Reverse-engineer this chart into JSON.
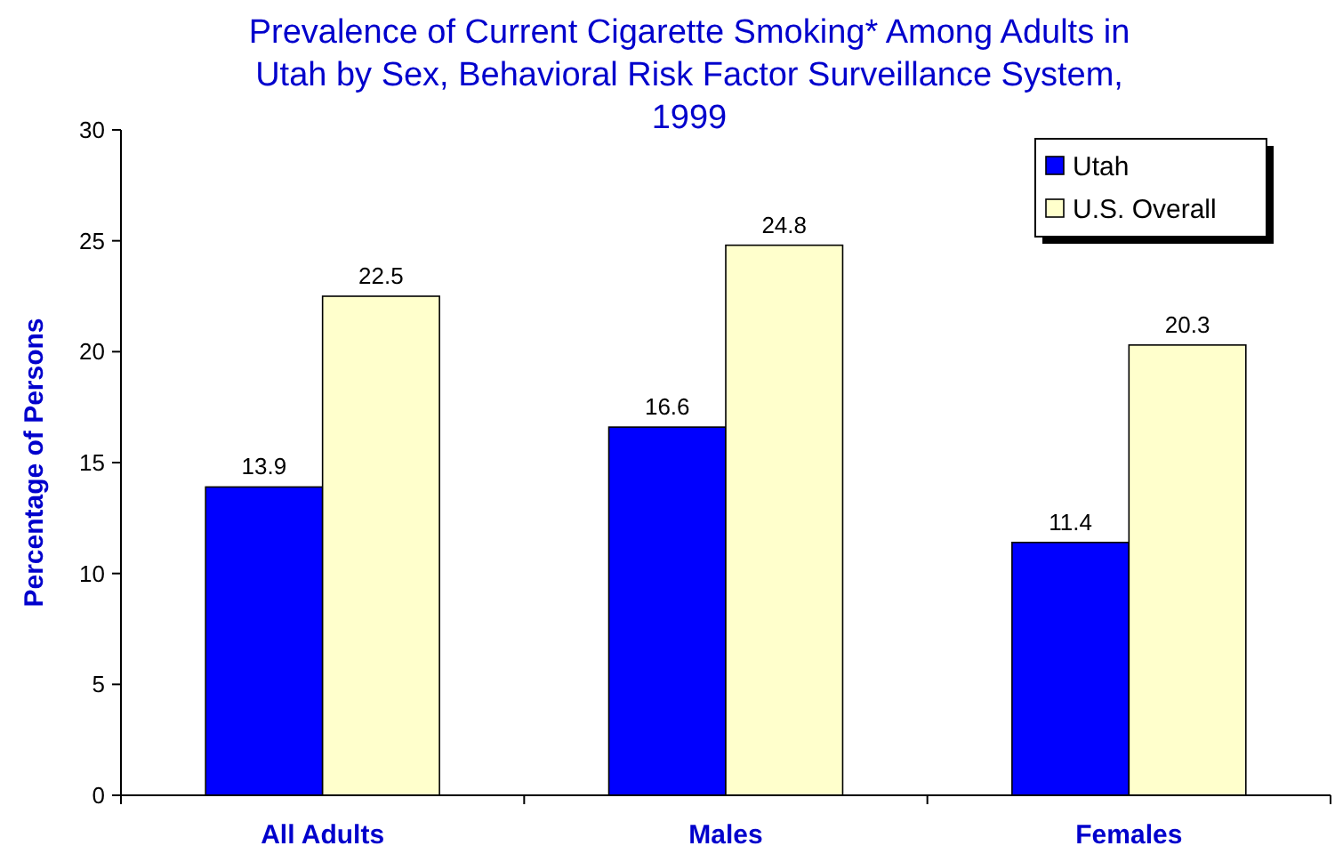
{
  "chart_data": {
    "type": "bar",
    "title": "Prevalence of Current Cigarette Smoking* Among Adults in Utah by Sex, Behavioral Risk Factor Surveillance System, 1999",
    "ylabel": "Percentage of Persons",
    "categories": [
      "All Adults",
      "Males",
      "Females"
    ],
    "series": [
      {
        "name": "Utah",
        "color": "#0000ff",
        "values": [
          13.9,
          16.6,
          11.4
        ]
      },
      {
        "name": "U.S. Overall",
        "color": "#ffffcc",
        "values": [
          22.5,
          24.8,
          20.3
        ]
      }
    ],
    "ylim": [
      0,
      30
    ],
    "yticks": [
      0,
      5,
      10,
      15,
      20,
      25,
      30
    ],
    "grid": false,
    "legend": "top right",
    "data_labels": true
  }
}
